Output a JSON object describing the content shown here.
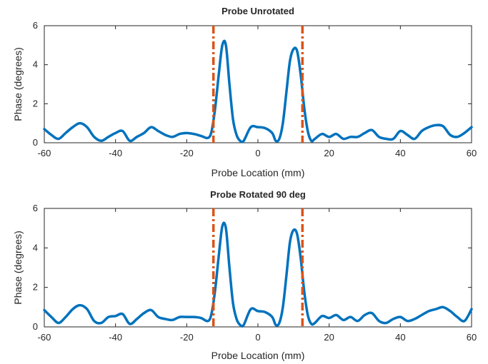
{
  "chart_data": [
    {
      "type": "line",
      "title": "Probe Unrotated",
      "xlabel": "Probe Location (mm)",
      "ylabel": "Phase (degrees)",
      "xlim": [
        -60,
        60
      ],
      "ylim": [
        0,
        6
      ],
      "xticks": [
        -60,
        -40,
        -20,
        0,
        20,
        40,
        60
      ],
      "yticks": [
        0,
        2,
        4,
        6
      ],
      "grid": false,
      "vlines": [
        -12.5,
        12.5
      ],
      "series": [
        {
          "color": "#0072BD",
          "x": [
            -60,
            -58,
            -56,
            -54,
            -52,
            -50,
            -48,
            -46,
            -44,
            -42,
            -40,
            -38,
            -36,
            -34,
            -32,
            -30,
            -28,
            -26,
            -24,
            -22,
            -20,
            -18,
            -16,
            -14,
            -13,
            -12,
            -11,
            -10,
            -9,
            -8,
            -7,
            -6,
            -5,
            -4,
            -2,
            0,
            2,
            4,
            5,
            6,
            7,
            8,
            9,
            10,
            11,
            12,
            13,
            14,
            15,
            16,
            18,
            20,
            22,
            24,
            26,
            28,
            30,
            32,
            34,
            36,
            38,
            40,
            42,
            44,
            46,
            48,
            50,
            52,
            54,
            56,
            58,
            60
          ],
          "y": [
            0.7,
            0.4,
            0.2,
            0.5,
            0.8,
            1.0,
            0.8,
            0.3,
            0.1,
            0.3,
            0.5,
            0.6,
            0.1,
            0.3,
            0.5,
            0.8,
            0.6,
            0.4,
            0.3,
            0.45,
            0.5,
            0.45,
            0.35,
            0.25,
            0.6,
            1.8,
            3.5,
            5.0,
            5.0,
            3.0,
            1.2,
            0.4,
            0.1,
            0.1,
            0.8,
            0.8,
            0.75,
            0.5,
            0.1,
            0.2,
            1.0,
            2.6,
            4.2,
            4.8,
            4.7,
            3.5,
            1.8,
            0.6,
            0.1,
            0.2,
            0.45,
            0.3,
            0.45,
            0.2,
            0.3,
            0.3,
            0.5,
            0.65,
            0.3,
            0.2,
            0.2,
            0.6,
            0.4,
            0.2,
            0.6,
            0.8,
            0.9,
            0.85,
            0.4,
            0.3,
            0.5,
            0.8
          ]
        }
      ]
    },
    {
      "type": "line",
      "title": "Probe Rotated 90 deg",
      "xlabel": "Probe Location (mm)",
      "ylabel": "Phase (degrees)",
      "xlim": [
        -60,
        60
      ],
      "ylim": [
        0,
        6
      ],
      "xticks": [
        -60,
        -40,
        -20,
        0,
        20,
        40,
        60
      ],
      "yticks": [
        0,
        2,
        4,
        6
      ],
      "grid": false,
      "vlines": [
        -12.5,
        12.5
      ],
      "series": [
        {
          "color": "#0072BD",
          "x": [
            -60,
            -58,
            -56,
            -54,
            -52,
            -50,
            -48,
            -46,
            -44,
            -42,
            -40,
            -38,
            -36,
            -34,
            -32,
            -30,
            -28,
            -26,
            -24,
            -22,
            -20,
            -18,
            -16,
            -14,
            -13,
            -12,
            -11,
            -10,
            -9,
            -8,
            -7,
            -6,
            -5,
            -4,
            -2,
            0,
            2,
            4,
            5,
            6,
            7,
            8,
            9,
            10,
            11,
            12,
            13,
            14,
            15,
            16,
            18,
            20,
            22,
            24,
            26,
            28,
            30,
            32,
            34,
            36,
            38,
            40,
            42,
            44,
            46,
            48,
            50,
            52,
            54,
            56,
            58,
            60
          ],
          "y": [
            0.85,
            0.5,
            0.2,
            0.5,
            0.9,
            1.1,
            0.9,
            0.3,
            0.2,
            0.5,
            0.55,
            0.65,
            0.15,
            0.4,
            0.7,
            0.85,
            0.5,
            0.4,
            0.35,
            0.5,
            0.5,
            0.5,
            0.45,
            0.3,
            0.7,
            1.9,
            3.6,
            5.1,
            5.0,
            3.0,
            1.2,
            0.4,
            0.1,
            0.1,
            0.9,
            0.8,
            0.75,
            0.5,
            0.1,
            0.2,
            1.0,
            2.6,
            4.3,
            4.9,
            4.7,
            3.5,
            1.8,
            0.6,
            0.15,
            0.2,
            0.55,
            0.45,
            0.6,
            0.35,
            0.5,
            0.3,
            0.6,
            0.7,
            0.3,
            0.2,
            0.4,
            0.5,
            0.3,
            0.4,
            0.6,
            0.8,
            0.9,
            1.0,
            0.8,
            0.5,
            0.3,
            0.9
          ]
        }
      ]
    }
  ]
}
